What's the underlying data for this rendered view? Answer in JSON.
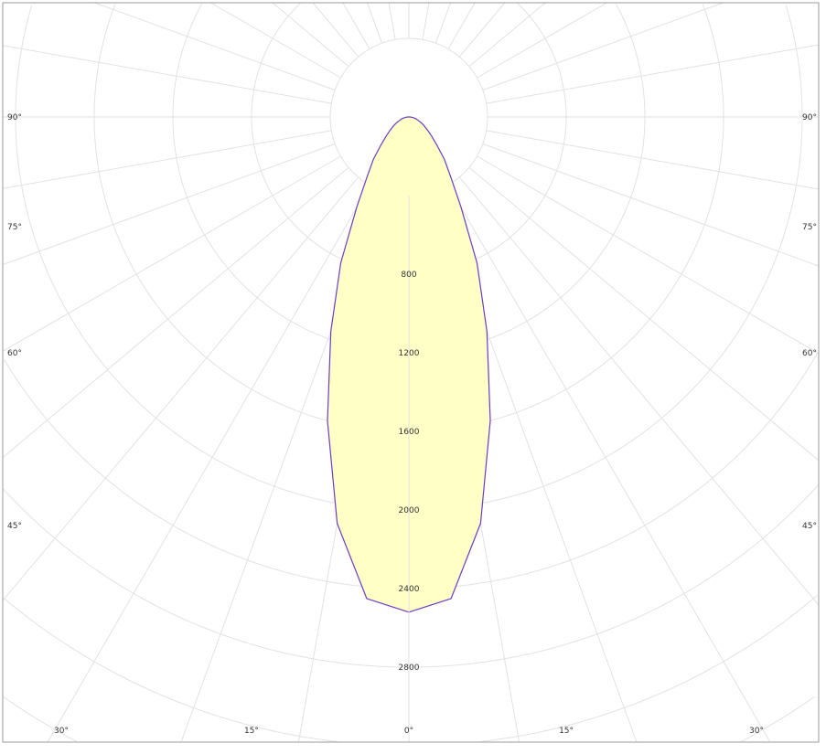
{
  "chart_data": {
    "type": "polar",
    "radial_unit": "cd",
    "radial_ticks": [
      400,
      800,
      1200,
      1600,
      2000,
      2400,
      2800,
      3200,
      3600,
      4000,
      4400,
      4800
    ],
    "radial_tick_labels": [
      "800",
      "1200",
      "1600",
      "2000",
      "2400",
      "2800"
    ],
    "angle_labels_side": [
      "90°",
      "75°",
      "60°",
      "45°"
    ],
    "angle_labels_bottom": [
      "30°",
      "15°",
      "0°",
      "15°",
      "30°"
    ],
    "angle_step_deg": 5,
    "grid": true,
    "series": [
      {
        "angles_deg": [
          0,
          5,
          10,
          15,
          20,
          25,
          30,
          35,
          40,
          45,
          50,
          55,
          60,
          65,
          70,
          75,
          80,
          85,
          90
        ],
        "values": [
          2520,
          2460,
          2100,
          1600,
          1160,
          820,
          530,
          370,
          280,
          200,
          150,
          115,
          90,
          70,
          50,
          38,
          25,
          15,
          5
        ],
        "symmetric": true
      }
    ],
    "colors": {
      "fill": "#ffffc6",
      "line": "#6a3cc8",
      "grid": "#e2e2e2",
      "frame": "#999999"
    }
  }
}
